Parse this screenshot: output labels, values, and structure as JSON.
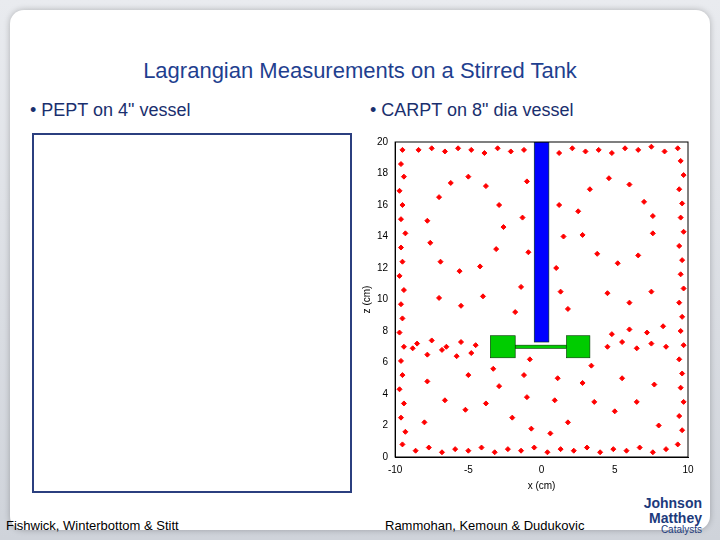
{
  "slide": {
    "title": "Lagrangian Measurements on a Stirred Tank",
    "bullets": [
      "• PEPT on 4\" vessel",
      "• CARPT on 8\" dia vessel"
    ],
    "credits": [
      "Fishwick, Winterbottom & Stitt",
      "Rammohan, Kemoun & Dudukovic"
    ],
    "logo": [
      "Johnson Matthey",
      "Catalysts"
    ]
  },
  "chart_data": {
    "type": "scatter",
    "x_label": "x (cm)",
    "y_label": "z (cm)",
    "color": "#ff0000",
    "marker": "diamond",
    "grid": false,
    "xlim": [
      -10,
      10
    ],
    "xticks": [
      -10,
      -5,
      0,
      5,
      10
    ],
    "ylim": [
      0,
      20
    ],
    "yticks": [
      0,
      2,
      4,
      6,
      8,
      10,
      12,
      14,
      16,
      18,
      20
    ],
    "x": [
      -9.5,
      -9.6,
      -9.4,
      -9.7,
      -9.5,
      -9.6,
      -9.3,
      -9.6,
      -9.5,
      -9.7,
      -9.4,
      -9.6,
      -9.5,
      -9.7,
      -9.4,
      -9.6,
      -9.5,
      -9.7,
      -9.4,
      -9.6,
      -9.3,
      -9.5,
      -8.6,
      -7.7,
      -6.8,
      -5.9,
      -5.0,
      -4.1,
      -3.2,
      -2.3,
      -1.4,
      -0.5,
      0.4,
      1.3,
      2.2,
      3.1,
      4.0,
      4.9,
      5.8,
      6.7,
      7.6,
      8.5,
      9.3,
      9.6,
      9.4,
      9.7,
      9.5,
      9.6,
      9.4,
      9.7,
      9.5,
      9.6,
      9.4,
      9.7,
      9.5,
      9.6,
      9.4,
      9.7,
      9.5,
      9.6,
      9.4,
      9.7,
      9.5,
      9.3,
      8.4,
      7.5,
      6.6,
      5.7,
      4.8,
      3.9,
      3.0,
      2.1,
      1.2,
      -1.2,
      -2.1,
      -3.0,
      -3.9,
      -4.8,
      -5.7,
      -6.6,
      -7.5,
      -8.4,
      -7.0,
      -6.2,
      -5.0,
      -3.8,
      -2.9,
      -2.6,
      -3.1,
      -4.2,
      -5.6,
      -6.9,
      -7.6,
      -7.8,
      -4.5,
      -5.5,
      -6.5,
      -7.5,
      -8.5,
      -4.8,
      -5.8,
      -6.8,
      -7.8,
      -8.8,
      -7.8,
      -6.6,
      -5.2,
      -3.8,
      -2.9,
      -3.3,
      -2.0,
      -1.0,
      -1.2,
      -0.8,
      4.5,
      5.5,
      6.5,
      7.5,
      8.5,
      4.8,
      6.0,
      7.2,
      8.3,
      7.0,
      6.0,
      4.6,
      3.3,
      2.5,
      2.8,
      3.8,
      5.2,
      6.6,
      7.6,
      7.6,
      1.2,
      1.5,
      1.0,
      1.3,
      1.8,
      -1.0,
      -1.3,
      -0.9,
      -1.4,
      -1.8,
      -4.0,
      -5.5,
      -7.0,
      4.5,
      6.0,
      7.5,
      7.7,
      6.5,
      5.0,
      3.6,
      2.8,
      3.4,
      1.8,
      0.9,
      1.1,
      0.6,
      -0.7,
      -8.0,
      8.0,
      -5.0,
      5.5
    ],
    "values": [
      19.5,
      18.6,
      17.8,
      16.9,
      16.0,
      15.1,
      14.2,
      13.3,
      12.4,
      11.5,
      10.6,
      9.7,
      8.8,
      7.9,
      7.0,
      6.1,
      5.2,
      4.3,
      3.4,
      2.5,
      1.6,
      0.8,
      0.4,
      0.6,
      0.3,
      0.5,
      0.4,
      0.6,
      0.3,
      0.5,
      0.4,
      0.6,
      0.3,
      0.5,
      0.4,
      0.6,
      0.3,
      0.5,
      0.4,
      0.6,
      0.3,
      0.5,
      0.8,
      1.7,
      2.6,
      3.5,
      4.4,
      5.3,
      6.2,
      7.1,
      8.0,
      8.9,
      9.8,
      10.7,
      11.6,
      12.5,
      13.4,
      14.3,
      15.2,
      16.1,
      17.0,
      17.9,
      18.8,
      19.6,
      19.4,
      19.7,
      19.5,
      19.6,
      19.3,
      19.5,
      19.4,
      19.6,
      19.3,
      19.5,
      19.4,
      19.6,
      19.3,
      19.5,
      19.6,
      19.4,
      19.6,
      19.5,
      16.5,
      17.4,
      17.8,
      17.2,
      16.0,
      14.6,
      13.2,
      12.1,
      11.8,
      12.4,
      13.6,
      15.0,
      7.1,
      7.3,
      7.0,
      7.4,
      7.2,
      6.6,
      6.4,
      6.8,
      6.5,
      6.9,
      4.8,
      3.6,
      3.0,
      3.4,
      4.5,
      5.6,
      2.5,
      3.8,
      5.2,
      6.2,
      7.0,
      7.3,
      6.9,
      7.2,
      7.0,
      7.8,
      8.1,
      7.9,
      8.3,
      16.2,
      17.3,
      17.7,
      17.0,
      15.6,
      14.1,
      12.9,
      12.3,
      12.8,
      14.2,
      15.3,
      16.0,
      14.0,
      12.0,
      10.5,
      9.4,
      17.5,
      15.2,
      13.0,
      10.8,
      9.2,
      10.2,
      9.6,
      10.1,
      10.4,
      9.8,
      10.5,
      4.6,
      3.5,
      2.9,
      3.5,
      4.7,
      5.8,
      2.2,
      3.6,
      5.0,
      1.5,
      1.8,
      2.2,
      2.0,
      5.2,
      5.0
    ],
    "shapes": [
      {
        "type": "rect",
        "x": [
          -0.5,
          0.5
        ],
        "y": [
          7.3,
          20
        ],
        "color": "#0000ff"
      },
      {
        "type": "rect",
        "x": [
          -1.8,
          1.7
        ],
        "y": [
          6.9,
          7.1
        ],
        "color": "#00cc00"
      },
      {
        "type": "rect",
        "x": [
          -3.5,
          -1.8
        ],
        "y": [
          6.3,
          7.7
        ],
        "color": "#00cc00"
      },
      {
        "type": "rect",
        "x": [
          1.7,
          3.3
        ],
        "y": [
          6.3,
          7.7
        ],
        "color": "#00cc00"
      }
    ]
  }
}
